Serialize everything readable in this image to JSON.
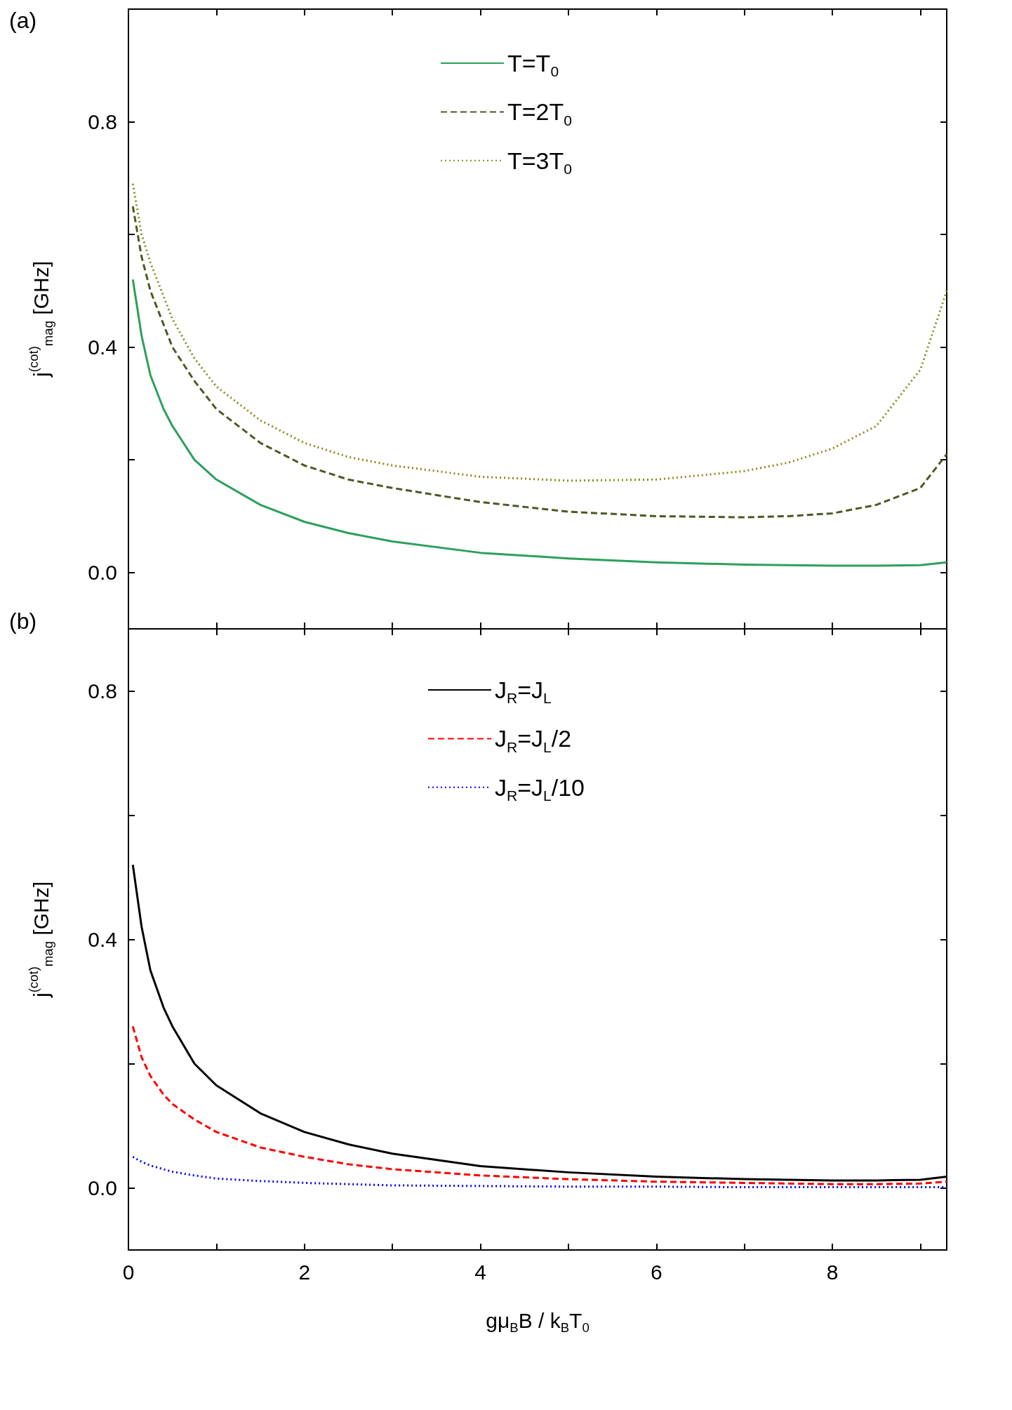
{
  "chart_data": [
    {
      "type": "line",
      "title": "(a)",
      "ylabel": "j$^{(cot)}$$_{mag}$ [GHz]",
      "xlim": [
        0,
        9.3
      ],
      "xticks": [
        0,
        {
          "value": 1,
          "label": null
        },
        {
          "value": 2,
          "label": null
        },
        {
          "value": 3,
          "label": null
        },
        {
          "value": 4,
          "label": null
        },
        {
          "value": 5,
          "label": null
        },
        {
          "value": 6,
          "label": null
        },
        {
          "value": 7,
          "label": null
        },
        {
          "value": 8,
          "label": null
        },
        {
          "value": 9,
          "label": null
        }
      ],
      "ylim": [
        -0.1,
        1.0
      ],
      "yticks": [
        {
          "value": 0,
          "label": "0.0"
        },
        {
          "value": 0.2,
          "label": null
        },
        {
          "value": 0.4,
          "label": "0.4"
        },
        {
          "value": 0.6,
          "label": null
        },
        {
          "value": 0.8,
          "label": "0.8"
        }
      ],
      "tick_labels": "y",
      "legend": "top",
      "marker": "none",
      "grid": false,
      "x": [
        0.05,
        0.15,
        0.25,
        0.4,
        0.5,
        0.75,
        1,
        1.5,
        2,
        2.5,
        3,
        4,
        5,
        6,
        7,
        7.5,
        8,
        8.5,
        9,
        9.3
      ],
      "series": [
        {
          "name": "T=T$_{0}$",
          "color": "#2ca05a",
          "line_style": "solid",
          "values": [
            0.52,
            0.42,
            0.35,
            0.29,
            0.26,
            0.2,
            0.165,
            0.12,
            0.09,
            0.07,
            0.055,
            0.035,
            0.025,
            0.018,
            0.014,
            0.013,
            0.012,
            0.012,
            0.013,
            0.018
          ]
        },
        {
          "name": "T=2T$_{0}$",
          "color": "#4a5a22",
          "line_style": "dashed",
          "values": [
            0.65,
            0.56,
            0.5,
            0.44,
            0.4,
            0.34,
            0.29,
            0.23,
            0.19,
            0.165,
            0.15,
            0.125,
            0.108,
            0.1,
            0.098,
            0.1,
            0.105,
            0.12,
            0.15,
            0.21
          ]
        },
        {
          "name": "T=3T$_{0}$",
          "color": "#8a8a1a",
          "line_style": "dotted",
          "values": [
            0.69,
            0.6,
            0.55,
            0.49,
            0.45,
            0.38,
            0.33,
            0.27,
            0.23,
            0.205,
            0.19,
            0.17,
            0.163,
            0.165,
            0.18,
            0.195,
            0.22,
            0.26,
            0.36,
            0.5
          ]
        }
      ]
    },
    {
      "type": "line",
      "title": "(b)",
      "xlabel": "gμ$_{B}$B / k$_{B}$T$_{0}$",
      "ylabel": "j$^{(cot)}$$_{mag}$ [GHz]",
      "xlim": [
        0,
        9.3
      ],
      "xticks": [
        0,
        {
          "value": 1,
          "label": null
        },
        2,
        {
          "value": 3,
          "label": null
        },
        4,
        {
          "value": 5,
          "label": null
        },
        6,
        {
          "value": 7,
          "label": null
        },
        8,
        {
          "value": 9,
          "label": null
        }
      ],
      "ylim": [
        -0.1,
        0.9
      ],
      "yticks": [
        {
          "value": 0,
          "label": "0.0"
        },
        {
          "value": 0.2,
          "label": null
        },
        {
          "value": 0.4,
          "label": "0.4"
        },
        {
          "value": 0.6,
          "label": null
        },
        {
          "value": 0.8,
          "label": "0.8"
        }
      ],
      "legend": "top",
      "marker": "none",
      "grid": false,
      "x": [
        0.05,
        0.15,
        0.25,
        0.4,
        0.5,
        0.75,
        1,
        1.5,
        2,
        2.5,
        3,
        4,
        5,
        6,
        7,
        7.5,
        8,
        8.5,
        9,
        9.3
      ],
      "series": [
        {
          "name": "J$_{R}$=J$_{L}$",
          "color": "#000000",
          "line_style": "solid",
          "values": [
            0.52,
            0.42,
            0.35,
            0.29,
            0.26,
            0.2,
            0.165,
            0.12,
            0.09,
            0.07,
            0.055,
            0.035,
            0.025,
            0.018,
            0.014,
            0.013,
            0.012,
            0.012,
            0.013,
            0.018
          ]
        },
        {
          "name": "J$_{R}$=J$_{L}$/2",
          "color": "#ff0000",
          "line_style": "dashed",
          "values": [
            0.26,
            0.21,
            0.18,
            0.15,
            0.135,
            0.11,
            0.09,
            0.065,
            0.05,
            0.038,
            0.03,
            0.02,
            0.014,
            0.01,
            0.008,
            0.007,
            0.006,
            0.006,
            0.007,
            0.01
          ]
        },
        {
          "name": "J$_{R}$=J$_{L}$/10",
          "color": "#0000ff",
          "line_style": "dotted",
          "values": [
            0.05,
            0.042,
            0.036,
            0.03,
            0.026,
            0.02,
            0.015,
            0.011,
            0.008,
            0.006,
            0.004,
            0.003,
            0.002,
            0.002,
            0.001,
            0.001,
            0.001,
            0.001,
            0.001,
            0.001
          ]
        }
      ]
    }
  ]
}
